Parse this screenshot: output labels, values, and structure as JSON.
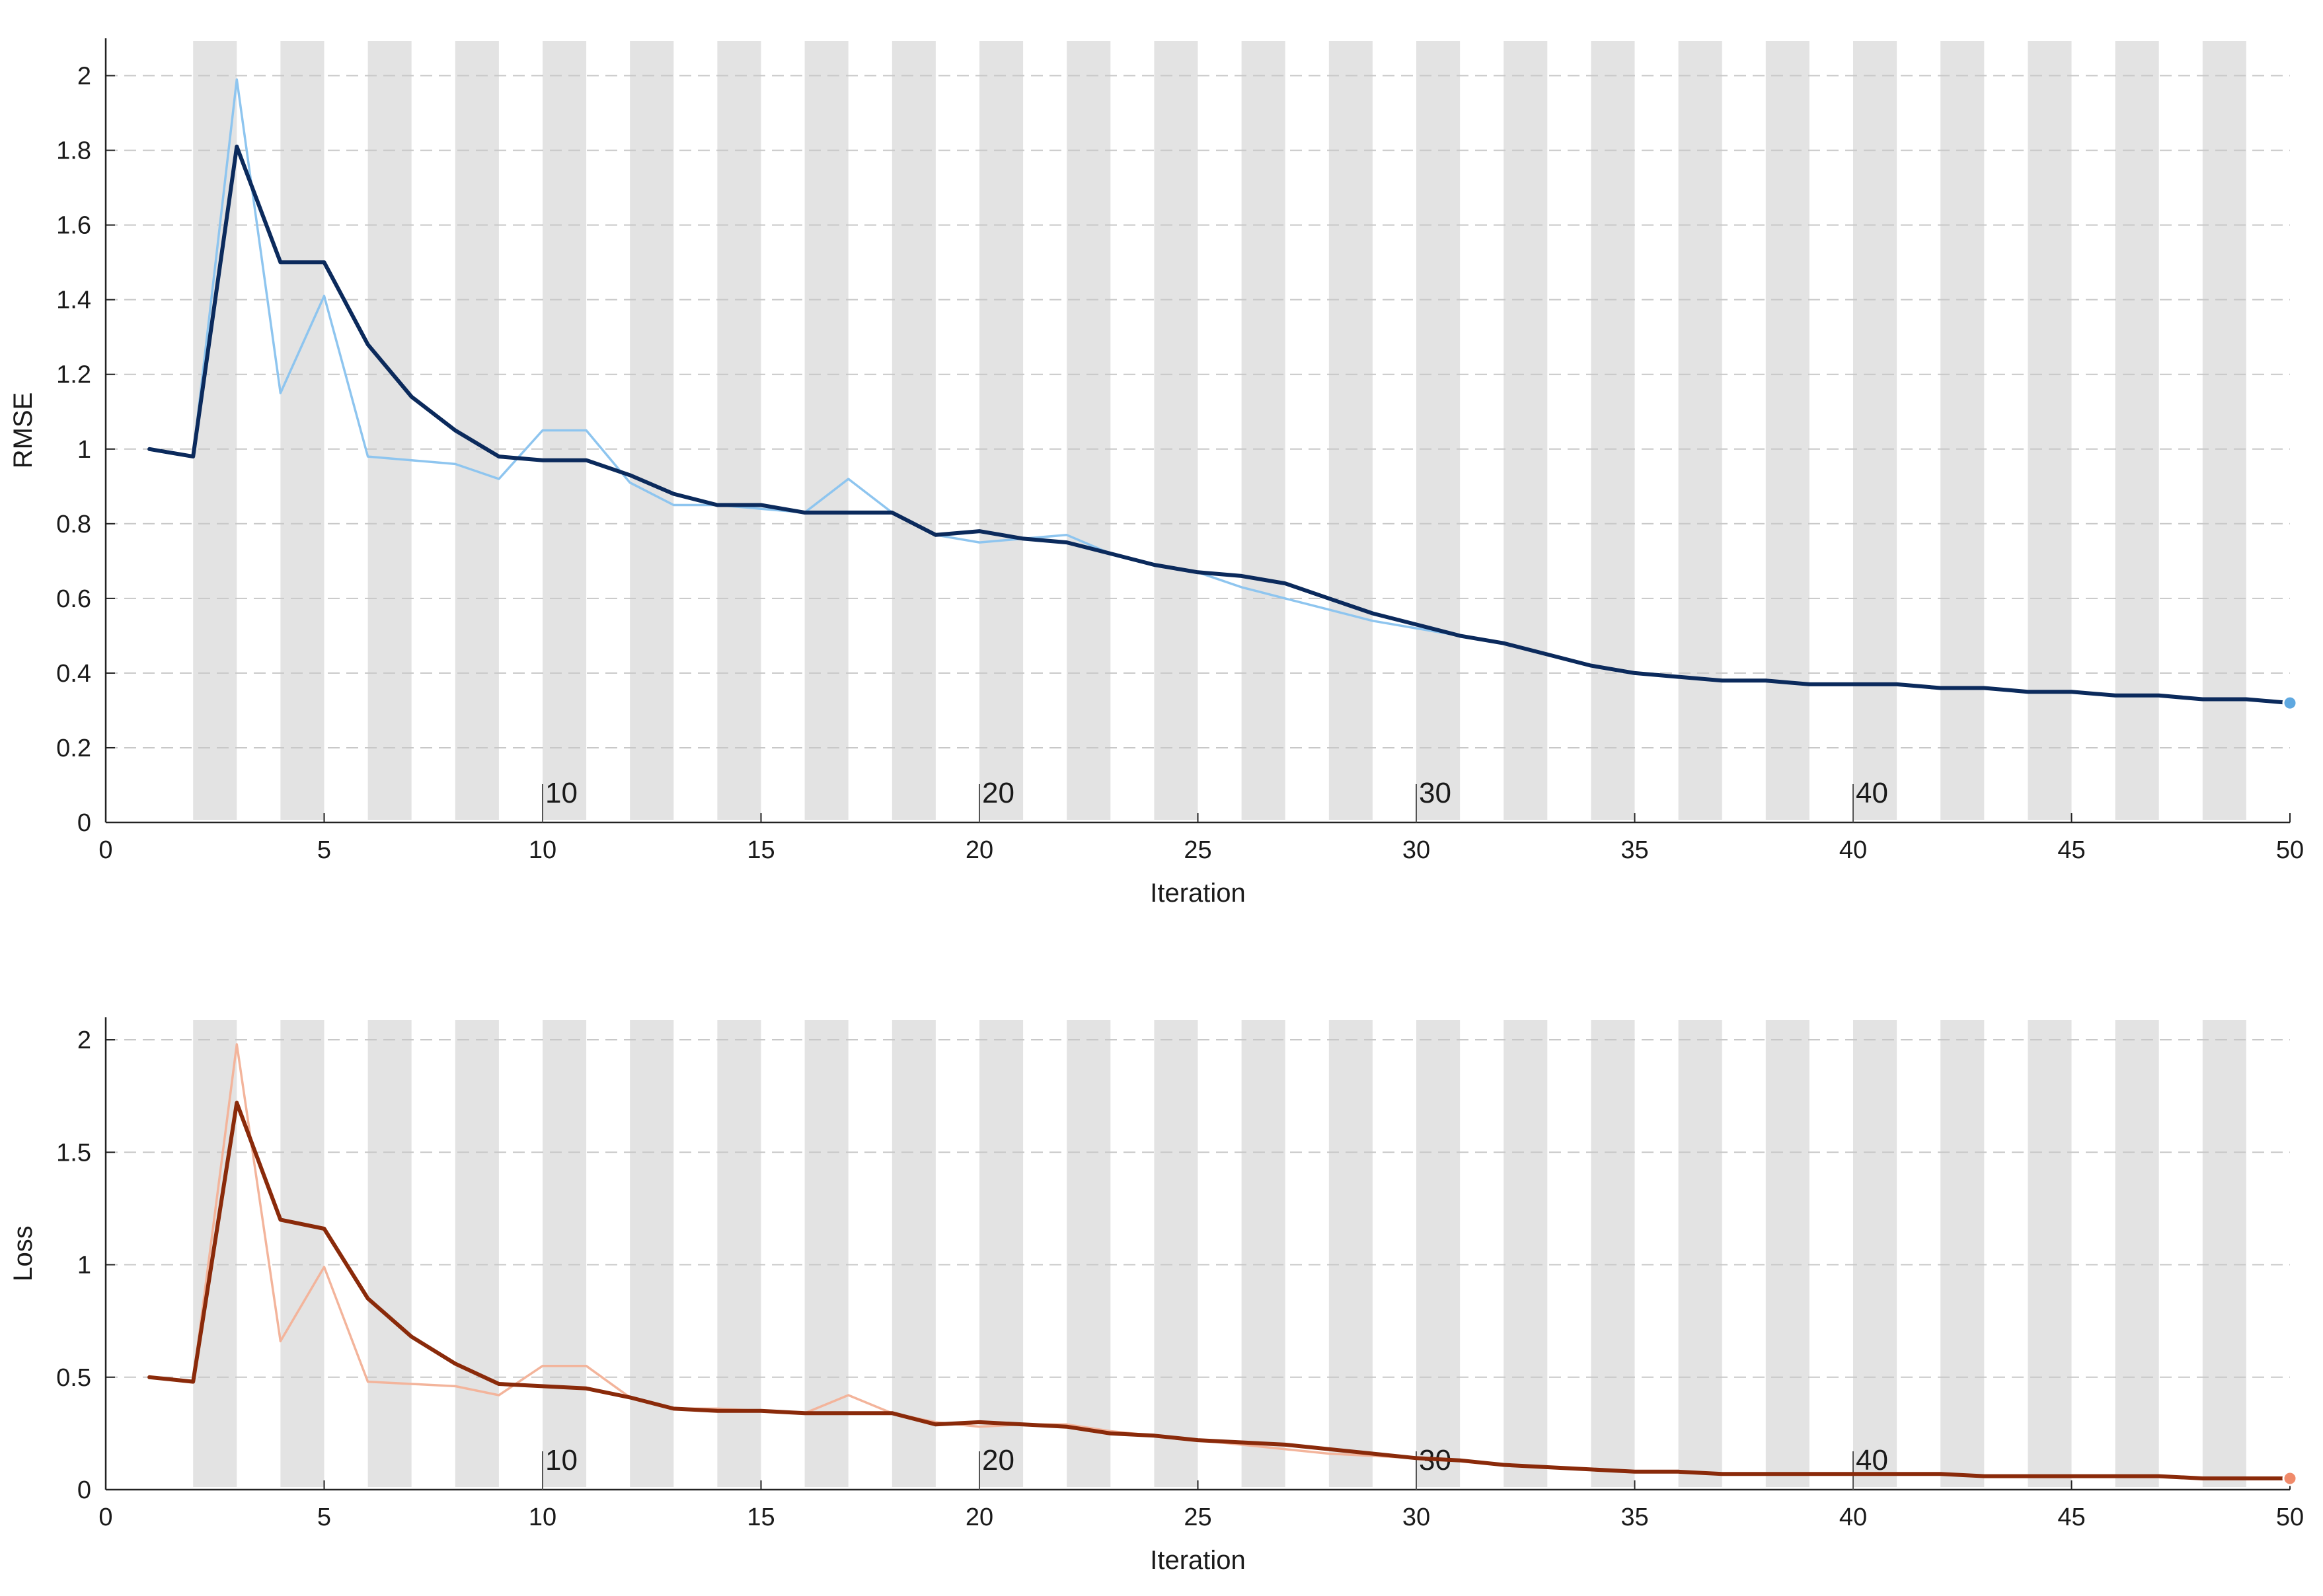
{
  "chart_data": [
    {
      "type": "line",
      "title": "",
      "xlabel": "Iteration",
      "ylabel": "RMSE",
      "xlim": [
        0,
        50
      ],
      "ylim": [
        0,
        2.1
      ],
      "xticks": [
        0,
        5,
        10,
        15,
        20,
        25,
        30,
        35,
        40,
        45,
        50
      ],
      "yticks": [
        0,
        0.2,
        0.4,
        0.6,
        0.8,
        1,
        1.2,
        1.4,
        1.6,
        1.8,
        2
      ],
      "ytick_labels": [
        "0",
        "0.2",
        "0.4",
        "0.6",
        "0.8",
        "1",
        "1.2",
        "1.4",
        "1.6",
        "1.8",
        "2"
      ],
      "grid": true,
      "epoch_shading": true,
      "epoch_labels": [
        {
          "x": 10,
          "text": "10"
        },
        {
          "x": 20,
          "text": "20"
        },
        {
          "x": 30,
          "text": "30"
        },
        {
          "x": 40,
          "text": "40"
        }
      ],
      "x": [
        1,
        2,
        3,
        4,
        5,
        6,
        7,
        8,
        9,
        10,
        11,
        12,
        13,
        14,
        15,
        16,
        17,
        18,
        19,
        20,
        21,
        22,
        23,
        24,
        25,
        26,
        27,
        28,
        29,
        30,
        31,
        32,
        33,
        34,
        35,
        36,
        37,
        38,
        39,
        40,
        41,
        42,
        43,
        44,
        45,
        46,
        47,
        48,
        49,
        50
      ],
      "series": [
        {
          "role": "raw",
          "color": "#8ec5ef",
          "values": [
            1.0,
            0.98,
            1.99,
            1.15,
            1.41,
            0.98,
            0.97,
            0.96,
            0.92,
            1.05,
            1.05,
            0.91,
            0.85,
            0.85,
            0.84,
            0.83,
            0.92,
            0.83,
            0.77,
            0.75,
            0.76,
            0.77,
            0.72,
            0.69,
            0.67,
            0.63,
            0.6,
            0.57,
            0.54,
            0.52,
            0.5,
            0.48,
            0.45,
            0.42,
            0.4,
            0.39,
            0.38,
            0.38,
            0.37,
            0.37,
            0.37,
            0.36,
            0.36,
            0.35,
            0.35,
            0.34,
            0.34,
            0.33,
            0.33,
            0.32
          ]
        },
        {
          "role": "smoothed",
          "color": "#0b2a5c",
          "values": [
            1.0,
            0.98,
            1.81,
            1.5,
            1.5,
            1.28,
            1.14,
            1.05,
            0.98,
            0.97,
            0.97,
            0.93,
            0.88,
            0.85,
            0.85,
            0.83,
            0.83,
            0.83,
            0.77,
            0.78,
            0.76,
            0.75,
            0.72,
            0.69,
            0.67,
            0.66,
            0.64,
            0.6,
            0.56,
            0.53,
            0.5,
            0.48,
            0.45,
            0.42,
            0.4,
            0.39,
            0.38,
            0.38,
            0.37,
            0.37,
            0.37,
            0.36,
            0.36,
            0.35,
            0.35,
            0.34,
            0.34,
            0.33,
            0.33,
            0.32
          ]
        }
      ],
      "final_marker": {
        "x": 50,
        "y": 0.32,
        "color": "#5fa8e0"
      }
    },
    {
      "type": "line",
      "title": "",
      "xlabel": "Iteration",
      "ylabel": "Loss",
      "xlim": [
        0,
        50
      ],
      "ylim": [
        0,
        2.1
      ],
      "xticks": [
        0,
        5,
        10,
        15,
        20,
        25,
        30,
        35,
        40,
        45,
        50
      ],
      "yticks": [
        0,
        0.5,
        1,
        1.5,
        2
      ],
      "ytick_labels": [
        "0",
        "0.5",
        "1",
        "1.5",
        "2"
      ],
      "grid": true,
      "epoch_shading": true,
      "epoch_labels": [
        {
          "x": 10,
          "text": "10"
        },
        {
          "x": 20,
          "text": "20"
        },
        {
          "x": 30,
          "text": "30"
        },
        {
          "x": 40,
          "text": "40"
        }
      ],
      "x": [
        1,
        2,
        3,
        4,
        5,
        6,
        7,
        8,
        9,
        10,
        11,
        12,
        13,
        14,
        15,
        16,
        17,
        18,
        19,
        20,
        21,
        22,
        23,
        24,
        25,
        26,
        27,
        28,
        29,
        30,
        31,
        32,
        33,
        34,
        35,
        36,
        37,
        38,
        39,
        40,
        41,
        42,
        43,
        44,
        45,
        46,
        47,
        48,
        49,
        50
      ],
      "series": [
        {
          "role": "raw",
          "color": "#f3b49b",
          "values": [
            0.5,
            0.48,
            1.98,
            0.66,
            0.99,
            0.48,
            0.47,
            0.46,
            0.42,
            0.55,
            0.55,
            0.41,
            0.36,
            0.36,
            0.35,
            0.34,
            0.42,
            0.34,
            0.3,
            0.28,
            0.29,
            0.29,
            0.26,
            0.24,
            0.22,
            0.2,
            0.18,
            0.16,
            0.15,
            0.14,
            0.13,
            0.11,
            0.1,
            0.09,
            0.08,
            0.08,
            0.07,
            0.07,
            0.07,
            0.07,
            0.07,
            0.07,
            0.06,
            0.06,
            0.06,
            0.06,
            0.06,
            0.05,
            0.05,
            0.05
          ]
        },
        {
          "role": "smoothed",
          "color": "#8a2a0a",
          "values": [
            0.5,
            0.48,
            1.72,
            1.2,
            1.16,
            0.85,
            0.68,
            0.56,
            0.47,
            0.46,
            0.45,
            0.41,
            0.36,
            0.35,
            0.35,
            0.34,
            0.34,
            0.34,
            0.29,
            0.3,
            0.29,
            0.28,
            0.25,
            0.24,
            0.22,
            0.21,
            0.2,
            0.18,
            0.16,
            0.14,
            0.13,
            0.11,
            0.1,
            0.09,
            0.08,
            0.08,
            0.07,
            0.07,
            0.07,
            0.07,
            0.07,
            0.07,
            0.06,
            0.06,
            0.06,
            0.06,
            0.06,
            0.05,
            0.05,
            0.05
          ]
        }
      ],
      "final_marker": {
        "x": 50,
        "y": 0.05,
        "color": "#f08a6a"
      }
    }
  ]
}
